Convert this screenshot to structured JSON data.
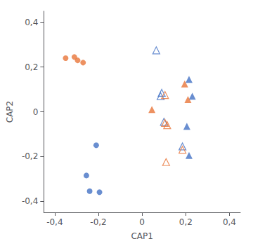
{
  "chart_data": {
    "type": "scatter",
    "xlabel": "CAP1",
    "ylabel": "CAP2",
    "xlim": [
      -0.45,
      0.45
    ],
    "ylim": [
      -0.45,
      0.45
    ],
    "xticks": [
      {
        "value": -0.4,
        "label": "-0,4"
      },
      {
        "value": -0.2,
        "label": "-0,2"
      },
      0,
      {
        "value": 0.2,
        "label": "0,2"
      },
      {
        "value": 0.4,
        "label": "0,4"
      }
    ],
    "yticks": [
      {
        "value": -0.4,
        "label": "-0,4"
      },
      {
        "value": -0.2,
        "label": "-0,2"
      },
      0,
      {
        "value": 0.2,
        "label": "0,2"
      },
      {
        "value": 0.4,
        "label": "0,4"
      }
    ],
    "grid": false,
    "series": [
      {
        "color": "#E8763A",
        "marker": "circle",
        "x": [
          -0.35,
          -0.31,
          -0.295,
          -0.27
        ],
        "values": [
          0.24,
          0.245,
          0.23,
          0.22
        ]
      },
      {
        "color": "#4472C4",
        "marker": "circle",
        "x": [
          -0.21,
          -0.255,
          -0.24,
          -0.195
        ],
        "values": [
          -0.15,
          -0.285,
          -0.355,
          -0.36
        ]
      },
      {
        "color": "#4472C4",
        "marker": "open_triangle",
        "x": [
          0.065,
          0.09,
          0.085,
          0.1,
          0.185
        ],
        "values": [
          0.275,
          0.085,
          0.07,
          -0.045,
          -0.155
        ]
      },
      {
        "color": "#E8763A",
        "marker": "open_triangle",
        "x": [
          0.105,
          0.105,
          0.115,
          0.185,
          0.11
        ],
        "values": [
          0.075,
          -0.05,
          -0.06,
          -0.17,
          -0.225
        ]
      },
      {
        "color": "#4472C4",
        "marker": "triangle",
        "x": [
          0.215,
          0.23,
          0.205,
          0.215
        ],
        "values": [
          0.145,
          0.07,
          -0.065,
          -0.195
        ]
      },
      {
        "color": "#E8763A",
        "marker": "triangle",
        "x": [
          0.045,
          0.195,
          0.21
        ],
        "values": [
          0.01,
          0.125,
          0.055
        ]
      }
    ]
  }
}
